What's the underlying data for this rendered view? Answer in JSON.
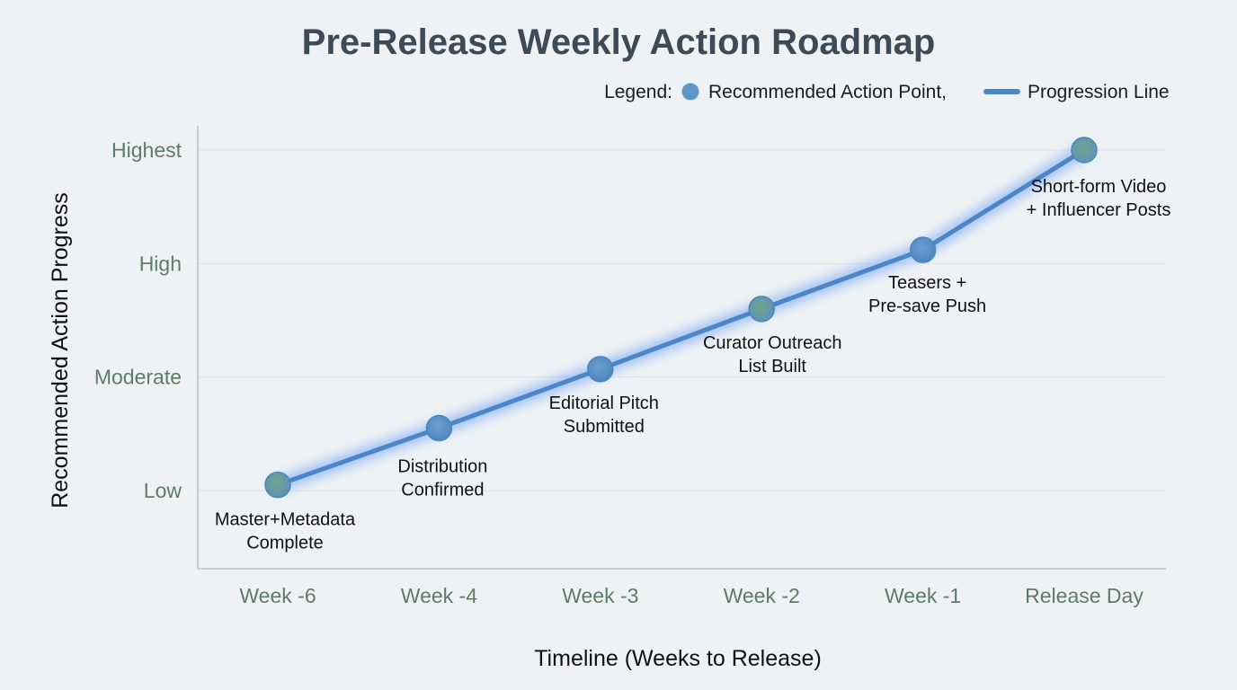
{
  "chart_data": {
    "type": "line",
    "title": "Pre-Release Weekly Action Roadmap",
    "xlabel": "Timeline (Weeks to Release)",
    "ylabel": "Recommended Action Progress",
    "categories": [
      "Week -6",
      "Week -4",
      "Week -3",
      "Week -2",
      "Week -1",
      "Release Day"
    ],
    "y_ticks": [
      "Low",
      "Moderate",
      "High",
      "Highest"
    ],
    "ylim": [
      0,
      3
    ],
    "series": [
      {
        "values": [
          0.05,
          0.55,
          1.07,
          1.6,
          2.12,
          3.0
        ],
        "point_labels": [
          [
            "Master+Metadata",
            "Complete"
          ],
          [
            "Distribution",
            "Confirmed"
          ],
          [
            "Editorial Pitch",
            "Submitted"
          ],
          [
            "Curator Outreach",
            "List Built"
          ],
          [
            "Teasers +",
            "Pre-save Push"
          ],
          [
            "Short-form Video",
            "+ Influencer Posts"
          ]
        ]
      }
    ],
    "legend": {
      "prefix": "Legend:",
      "point_label": "Recommended Action Point,",
      "line_label": "Progression Line",
      "placement": "top-right"
    },
    "grid": true,
    "colors": {
      "line": "#4a86c8",
      "glow": "#7aa8f5",
      "point_fill": "#5f95c4",
      "point_fill_accent": "#6aa08c",
      "point_stroke": "#4c84bd",
      "tick_text": "#5d7b69",
      "title_text": "#3c4b57"
    }
  }
}
